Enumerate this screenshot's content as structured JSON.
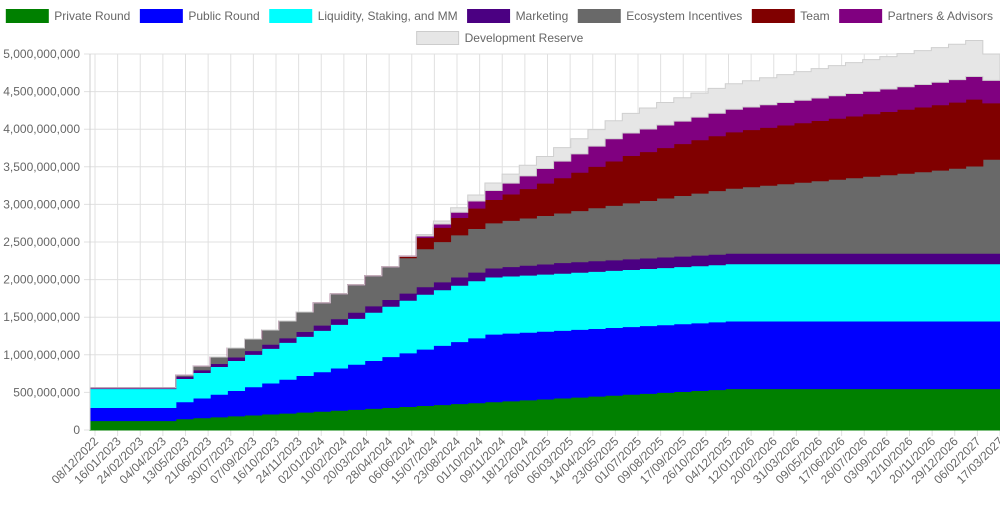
{
  "chart_data": {
    "type": "area",
    "stacked": true,
    "stepped": true,
    "title": "",
    "xlabel": "",
    "ylabel": "",
    "ylim": [
      0,
      5000000000
    ],
    "yticks": [
      0,
      500000000,
      1000000000,
      1500000000,
      2000000000,
      2500000000,
      3000000000,
      3500000000,
      4000000000,
      4500000000,
      5000000000
    ],
    "ytick_labels": [
      "0",
      "500,000,000",
      "1,000,000,000",
      "1,500,000,000",
      "2,000,000,000",
      "2,500,000,000",
      "3,000,000,000",
      "3,500,000,000",
      "4,000,000,000",
      "4,500,000,000",
      "5,000,000,000"
    ],
    "grid": true,
    "legend_position": "top",
    "xtick_labels": [
      "08/12/2022",
      "16/01/2023",
      "24/02/2023",
      "04/04/2023",
      "13/05/2023",
      "21/06/2023",
      "30/07/2023",
      "07/09/2023",
      "16/10/2023",
      "24/11/2023",
      "02/01/2024",
      "10/02/2024",
      "20/03/2024",
      "28/04/2024",
      "06/06/2024",
      "15/07/2024",
      "23/08/2024",
      "01/10/2024",
      "09/11/2024",
      "18/12/2024",
      "26/01/2025",
      "06/03/2025",
      "14/04/2025",
      "23/05/2025",
      "01/07/2025",
      "09/08/2025",
      "17/09/2025",
      "26/10/2025",
      "04/12/2025",
      "12/01/2026",
      "20/02/2026",
      "31/03/2026",
      "09/05/2026",
      "17/06/2026",
      "26/07/2026",
      "03/09/2026",
      "12/10/2026",
      "20/11/2026",
      "29/12/2026",
      "06/02/2027",
      "17/03/2027"
    ],
    "steps": 53,
    "series": [
      {
        "name": "Private Round",
        "color": "#008000",
        "values": [
          125000000,
          125000000,
          125000000,
          125000000,
          125000000,
          150000000,
          162500000,
          175000000,
          187500000,
          200000000,
          212500000,
          225000000,
          237500000,
          250000000,
          262500000,
          275000000,
          287500000,
          300000000,
          312500000,
          325000000,
          337500000,
          350000000,
          362500000,
          375000000,
          387500000,
          400000000,
          412500000,
          425000000,
          437500000,
          450000000,
          462500000,
          475000000,
          487500000,
          500000000,
          512500000,
          525000000,
          537500000,
          550000000,
          550000000,
          550000000,
          550000000,
          550000000,
          550000000,
          550000000,
          550000000,
          550000000,
          550000000,
          550000000,
          550000000,
          550000000,
          550000000,
          550000000,
          550000000
        ]
      },
      {
        "name": "Public Round",
        "color": "#0000ff",
        "values": [
          175000000,
          175000000,
          175000000,
          175000000,
          175000000,
          225000000,
          262500000,
          300000000,
          337500000,
          375000000,
          412500000,
          450000000,
          487500000,
          525000000,
          562500000,
          600000000,
          637500000,
          675000000,
          712500000,
          750000000,
          787500000,
          825000000,
          862500000,
          900000000,
          900000000,
          900000000,
          900000000,
          900000000,
          900000000,
          900000000,
          900000000,
          900000000,
          900000000,
          900000000,
          900000000,
          900000000,
          900000000,
          900000000,
          900000000,
          900000000,
          900000000,
          900000000,
          900000000,
          900000000,
          900000000,
          900000000,
          900000000,
          900000000,
          900000000,
          900000000,
          900000000,
          900000000,
          900000000
        ]
      },
      {
        "name": "Liquidity, Staking, and MM",
        "color": "#00ffff",
        "values": [
          250000000,
          250000000,
          250000000,
          250000000,
          250000000,
          310000000,
          340000000,
          370000000,
          400000000,
          430000000,
          460000000,
          490000000,
          520000000,
          550000000,
          580000000,
          610000000,
          640000000,
          670000000,
          700000000,
          730000000,
          740000000,
          750000000,
          760000000,
          760000000,
          760000000,
          760000000,
          760000000,
          760000000,
          760000000,
          760000000,
          760000000,
          760000000,
          760000000,
          760000000,
          760000000,
          760000000,
          760000000,
          760000000,
          760000000,
          760000000,
          760000000,
          760000000,
          760000000,
          760000000,
          760000000,
          760000000,
          760000000,
          760000000,
          760000000,
          760000000,
          760000000,
          760000000,
          760000000
        ]
      },
      {
        "name": "Marketing",
        "color": "#4b0082",
        "values": [
          10000000,
          10000000,
          10000000,
          10000000,
          10000000,
          30000000,
          35000000,
          40000000,
          45000000,
          50000000,
          55000000,
          60000000,
          65000000,
          70000000,
          75000000,
          80000000,
          85000000,
          90000000,
          95000000,
          100000000,
          105000000,
          110000000,
          115000000,
          120000000,
          125000000,
          130000000,
          135000000,
          140000000,
          140000000,
          140000000,
          140000000,
          140000000,
          140000000,
          140000000,
          140000000,
          140000000,
          140000000,
          140000000,
          140000000,
          140000000,
          140000000,
          140000000,
          140000000,
          140000000,
          140000000,
          140000000,
          140000000,
          140000000,
          140000000,
          140000000,
          140000000,
          140000000,
          140000000
        ]
      },
      {
        "name": "Ecosystem Incentives",
        "color": "#696969",
        "values": [
          0,
          0,
          0,
          0,
          0,
          15000000,
          50000000,
          85000000,
          120000000,
          155000000,
          190000000,
          225000000,
          260000000,
          295000000,
          330000000,
          365000000,
          400000000,
          435000000,
          470000000,
          505000000,
          535000000,
          560000000,
          580000000,
          600000000,
          615000000,
          630000000,
          645000000,
          660000000,
          680000000,
          705000000,
          725000000,
          745000000,
          765000000,
          785000000,
          805000000,
          825000000,
          845000000,
          865000000,
          885000000,
          905000000,
          925000000,
          945000000,
          965000000,
          985000000,
          1005000000,
          1025000000,
          1045000000,
          1065000000,
          1085000000,
          1105000000,
          1130000000,
          1160000000,
          1250000000
        ]
      },
      {
        "name": "Team",
        "color": "#800000",
        "values": [
          0,
          0,
          0,
          0,
          0,
          0,
          0,
          0,
          0,
          0,
          0,
          0,
          0,
          0,
          0,
          0,
          0,
          0,
          20000000,
          150000000,
          190000000,
          230000000,
          270000000,
          310000000,
          350000000,
          390000000,
          430000000,
          470000000,
          510000000,
          550000000,
          590000000,
          630000000,
          650000000,
          670000000,
          690000000,
          710000000,
          730000000,
          750000000,
          760000000,
          770000000,
          780000000,
          790000000,
          800000000,
          810000000,
          820000000,
          830000000,
          840000000,
          850000000,
          860000000,
          870000000,
          880000000,
          890000000,
          750000000
        ]
      },
      {
        "name": "Partners & Advisors",
        "color": "#800080",
        "values": [
          0,
          0,
          0,
          0,
          0,
          0,
          0,
          0,
          0,
          0,
          0,
          0,
          0,
          0,
          0,
          0,
          0,
          0,
          0,
          20000000,
          45000000,
          70000000,
          95000000,
          120000000,
          145000000,
          170000000,
          195000000,
          220000000,
          245000000,
          270000000,
          295000000,
          300000000,
          300000000,
          300000000,
          300000000,
          300000000,
          300000000,
          300000000,
          300000000,
          300000000,
          300000000,
          300000000,
          300000000,
          300000000,
          300000000,
          300000000,
          300000000,
          300000000,
          300000000,
          300000000,
          300000000,
          300000000,
          300000000
        ]
      },
      {
        "name": "Development Reserve",
        "color": "#e6e6e6",
        "values": [
          0,
          0,
          0,
          0,
          0,
          0,
          0,
          0,
          0,
          0,
          0,
          0,
          0,
          0,
          0,
          0,
          0,
          0,
          0,
          20000000,
          40000000,
          60000000,
          80000000,
          100000000,
          120000000,
          140000000,
          160000000,
          180000000,
          200000000,
          220000000,
          240000000,
          260000000,
          280000000,
          300000000,
          310000000,
          320000000,
          330000000,
          340000000,
          350000000,
          360000000,
          370000000,
          380000000,
          390000000,
          400000000,
          410000000,
          420000000,
          430000000,
          440000000,
          450000000,
          460000000,
          470000000,
          480000000,
          350000000
        ]
      }
    ]
  }
}
